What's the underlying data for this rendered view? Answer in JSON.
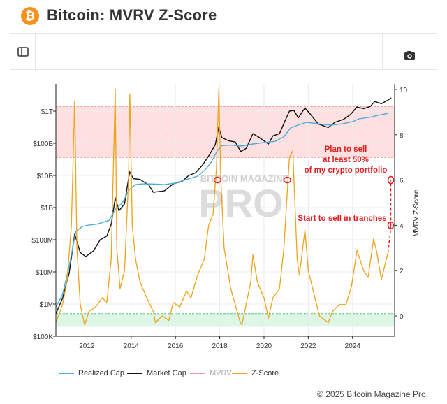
{
  "header": {
    "title": "Bitcoin: MVRV Z-Score",
    "logo_glyph": "₿",
    "logo_color": "#f7931a"
  },
  "toolbar": {
    "sidebar_icon": "sidebar-toggle-icon",
    "camera_icon": "camera-icon"
  },
  "footer": {
    "copyright": "© 2025 Bitcoin Magazine Pro."
  },
  "watermark": {
    "line1": "BITCOIN MAGAZINE",
    "line2": "PRO"
  },
  "chart_data": {
    "type": "line",
    "x_range": [
      2010.6,
      2025.9
    ],
    "x_ticks": [
      "2012",
      "2014",
      "2016",
      "2018",
      "2020",
      "2022",
      "2024"
    ],
    "left_axis": {
      "scale": "log",
      "ticks": [
        "$1T",
        "$100B",
        "$10B",
        "$1B",
        "$100M",
        "$10M",
        "$1M",
        "$100K"
      ]
    },
    "right_axis": {
      "label": "MVRV Z-Score",
      "ticks": [
        "10",
        "8",
        "6",
        "4",
        "2",
        "0"
      ],
      "range": [
        -0.5,
        10
      ]
    },
    "zones": [
      {
        "name": "top",
        "color": "#ffd6d6"
      },
      {
        "name": "bottom",
        "color": "#d9f5e3"
      }
    ],
    "annotations": [
      {
        "text_lines": [
          "Plan to sell",
          "at least 50%",
          "of my crypto portfolio"
        ],
        "color": "#e02020",
        "z": 6
      },
      {
        "text_lines": [
          "Start to sell in tranches"
        ],
        "color": "#e02020",
        "z": 4
      }
    ],
    "series": [
      {
        "name": "Realized Cap",
        "color": "#4aaed9",
        "axis": "left",
        "points": [
          [
            2010.6,
            0.8
          ],
          [
            2010.9,
            2
          ],
          [
            2011.2,
            15
          ],
          [
            2011.5,
            180
          ],
          [
            2011.8,
            260
          ],
          [
            2012.0,
            280
          ],
          [
            2012.5,
            310
          ],
          [
            2013.0,
            400
          ],
          [
            2013.3,
            900
          ],
          [
            2013.6,
            1400
          ],
          [
            2013.9,
            3500
          ],
          [
            2014.2,
            5200
          ],
          [
            2014.6,
            5500
          ],
          [
            2015.0,
            5400
          ],
          [
            2015.5,
            5200
          ],
          [
            2016.0,
            5800
          ],
          [
            2016.5,
            7500
          ],
          [
            2017.0,
            9500
          ],
          [
            2017.3,
            14000
          ],
          [
            2017.6,
            25000
          ],
          [
            2017.9,
            60000
          ],
          [
            2018.1,
            85000
          ],
          [
            2018.5,
            88000
          ],
          [
            2019.0,
            82000
          ],
          [
            2019.5,
            95000
          ],
          [
            2020.0,
            105000
          ],
          [
            2020.5,
            115000
          ],
          [
            2020.9,
            160000
          ],
          [
            2021.2,
            300000
          ],
          [
            2021.5,
            360000
          ],
          [
            2021.9,
            450000
          ],
          [
            2022.2,
            430000
          ],
          [
            2022.6,
            390000
          ],
          [
            2023.0,
            370000
          ],
          [
            2023.5,
            400000
          ],
          [
            2024.0,
            470000
          ],
          [
            2024.3,
            580000
          ],
          [
            2024.8,
            650000
          ],
          [
            2025.3,
            780000
          ],
          [
            2025.6,
            850000
          ]
        ]
      },
      {
        "name": "Market Cap",
        "color": "#111111",
        "axis": "left",
        "points": [
          [
            2010.6,
            0.5
          ],
          [
            2010.9,
            1.5
          ],
          [
            2011.2,
            9
          ],
          [
            2011.45,
            150
          ],
          [
            2011.7,
            40
          ],
          [
            2011.95,
            30
          ],
          [
            2012.3,
            45
          ],
          [
            2012.6,
            100
          ],
          [
            2012.9,
            130
          ],
          [
            2013.1,
            300
          ],
          [
            2013.28,
            2000
          ],
          [
            2013.45,
            800
          ],
          [
            2013.7,
            1300
          ],
          [
            2013.93,
            13000
          ],
          [
            2014.1,
            8000
          ],
          [
            2014.4,
            7500
          ],
          [
            2014.8,
            5000
          ],
          [
            2015.0,
            3000
          ],
          [
            2015.5,
            3300
          ],
          [
            2015.9,
            5500
          ],
          [
            2016.3,
            6500
          ],
          [
            2016.6,
            10000
          ],
          [
            2016.9,
            12000
          ],
          [
            2017.2,
            20000
          ],
          [
            2017.5,
            40000
          ],
          [
            2017.8,
            90000
          ],
          [
            2017.96,
            320000
          ],
          [
            2018.1,
            150000
          ],
          [
            2018.4,
            120000
          ],
          [
            2018.7,
            110000
          ],
          [
            2018.95,
            55000
          ],
          [
            2019.2,
            70000
          ],
          [
            2019.5,
            200000
          ],
          [
            2019.8,
            150000
          ],
          [
            2020.2,
            95000
          ],
          [
            2020.4,
            170000
          ],
          [
            2020.7,
            200000
          ],
          [
            2020.95,
            500000
          ],
          [
            2021.15,
            1000000
          ],
          [
            2021.35,
            1050000
          ],
          [
            2021.55,
            620000
          ],
          [
            2021.85,
            1250000
          ],
          [
            2022.1,
            800000
          ],
          [
            2022.45,
            400000
          ],
          [
            2022.9,
            310000
          ],
          [
            2023.2,
            450000
          ],
          [
            2023.6,
            560000
          ],
          [
            2023.9,
            780000
          ],
          [
            2024.2,
            1350000
          ],
          [
            2024.5,
            1200000
          ],
          [
            2024.8,
            1400000
          ],
          [
            2025.0,
            2000000
          ],
          [
            2025.3,
            1700000
          ],
          [
            2025.6,
            2200000
          ],
          [
            2025.75,
            2600000
          ]
        ]
      },
      {
        "name": "MVRV",
        "color": "#e8a0a8",
        "axis": "none",
        "points": []
      },
      {
        "name": "Z-Score",
        "color": "#f0a21b",
        "axis": "right",
        "points": [
          [
            2010.6,
            -0.3
          ],
          [
            2010.9,
            0.5
          ],
          [
            2011.1,
            1.5
          ],
          [
            2011.3,
            4
          ],
          [
            2011.45,
            9.5
          ],
          [
            2011.55,
            3
          ],
          [
            2011.7,
            0.5
          ],
          [
            2011.9,
            -0.4
          ],
          [
            2012.1,
            0.2
          ],
          [
            2012.4,
            0.4
          ],
          [
            2012.7,
            0.8
          ],
          [
            2012.9,
            0.6
          ],
          [
            2013.1,
            2.5
          ],
          [
            2013.28,
            10
          ],
          [
            2013.35,
            3
          ],
          [
            2013.5,
            1.2
          ],
          [
            2013.7,
            2
          ],
          [
            2013.88,
            6
          ],
          [
            2013.94,
            9.8
          ],
          [
            2014.05,
            4
          ],
          [
            2014.2,
            2.5
          ],
          [
            2014.4,
            1.5
          ],
          [
            2014.7,
            0.8
          ],
          [
            2015.0,
            0.2
          ],
          [
            2015.1,
            -0.3
          ],
          [
            2015.4,
            0
          ],
          [
            2015.7,
            -0.2
          ],
          [
            2015.9,
            0.6
          ],
          [
            2016.2,
            0.4
          ],
          [
            2016.5,
            1.1
          ],
          [
            2016.7,
            0.8
          ],
          [
            2017.0,
            1.8
          ],
          [
            2017.3,
            2.5
          ],
          [
            2017.5,
            4
          ],
          [
            2017.7,
            4.5
          ],
          [
            2017.85,
            6.5
          ],
          [
            2017.96,
            10
          ],
          [
            2018.05,
            6
          ],
          [
            2018.2,
            3
          ],
          [
            2018.5,
            1.2
          ],
          [
            2018.9,
            -0.2
          ],
          [
            2019.0,
            -0.4
          ],
          [
            2019.4,
            1.5
          ],
          [
            2019.5,
            2.7
          ],
          [
            2019.7,
            1.5
          ],
          [
            2020.0,
            0.8
          ],
          [
            2020.2,
            -0.1
          ],
          [
            2020.4,
            0.8
          ],
          [
            2020.7,
            1.2
          ],
          [
            2020.9,
            3
          ],
          [
            2021.05,
            5.5
          ],
          [
            2021.15,
            7
          ],
          [
            2021.3,
            7.3
          ],
          [
            2021.5,
            2.5
          ],
          [
            2021.6,
            1.8
          ],
          [
            2021.85,
            3.8
          ],
          [
            2022.0,
            2
          ],
          [
            2022.3,
            0.8
          ],
          [
            2022.5,
            0
          ],
          [
            2022.9,
            -0.3
          ],
          [
            2023.1,
            0.2
          ],
          [
            2023.4,
            0.5
          ],
          [
            2023.7,
            0.5
          ],
          [
            2023.95,
            1.3
          ],
          [
            2024.2,
            2.9
          ],
          [
            2024.5,
            2
          ],
          [
            2024.7,
            1.7
          ],
          [
            2024.95,
            3.4
          ],
          [
            2025.1,
            2.8
          ],
          [
            2025.3,
            1.6
          ],
          [
            2025.5,
            2.4
          ],
          [
            2025.6,
            2.8
          ]
        ]
      }
    ],
    "legend_position": "bottom-left",
    "grid": true
  },
  "legend": {
    "items": [
      {
        "label": "Realized Cap",
        "color": "#4aaed9"
      },
      {
        "label": "Market Cap",
        "color": "#111111"
      },
      {
        "label": "MVRV",
        "color": "#e8a0a8"
      },
      {
        "label": "Z-Score",
        "color": "#f0a21b"
      }
    ]
  }
}
